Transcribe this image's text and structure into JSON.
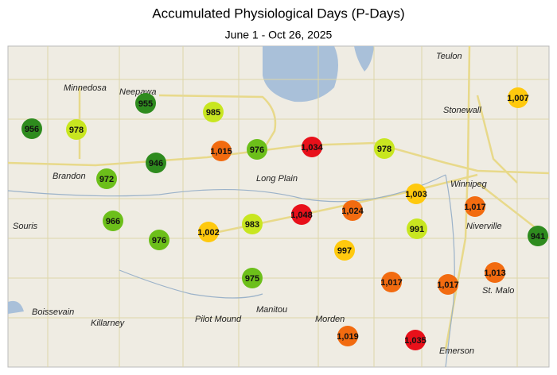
{
  "title": "Accumulated Physiological Days (P-Days)",
  "subtitle": "June 1 - Oct 26, 2025",
  "places": [
    "Teulon",
    "Minnedosa",
    "Neepawa",
    "Stonewall",
    "Winnipeg",
    "Brandon",
    "Long Plain",
    "Souris",
    "Niverville",
    "St. Malo",
    "Boissevain",
    "Killarney",
    "Pilot Mound",
    "Manitou",
    "Morden",
    "Emerson"
  ],
  "stations": [
    {
      "value": 956,
      "color": "#2e8b1e"
    },
    {
      "value": 978,
      "color": "#c8e620"
    },
    {
      "value": 955,
      "color": "#2e8b1e"
    },
    {
      "value": 985,
      "color": "#c8e620"
    },
    {
      "value": 1007,
      "label": "1,007",
      "color": "#ffc90e"
    },
    {
      "value": 972,
      "color": "#6cbf1a"
    },
    {
      "value": 946,
      "color": "#2e8b1e"
    },
    {
      "value": 1015,
      "label": "1,015",
      "color": "#f26b10"
    },
    {
      "value": 976,
      "color": "#6cbf1a"
    },
    {
      "value": 1034,
      "label": "1,034",
      "color": "#e8101a"
    },
    {
      "value": 978,
      "color": "#c8e620"
    },
    {
      "value": 1003,
      "label": "1,003",
      "color": "#ffc90e"
    },
    {
      "value": 1017,
      "label": "1,017",
      "color": "#f26b10"
    },
    {
      "value": 966,
      "color": "#6cbf1a"
    },
    {
      "value": 976,
      "color": "#6cbf1a"
    },
    {
      "value": 1002,
      "label": "1,002",
      "color": "#ffc90e"
    },
    {
      "value": 983,
      "color": "#c8e620"
    },
    {
      "value": 1048,
      "label": "1,048",
      "color": "#e8101a"
    },
    {
      "value": 1024,
      "label": "1,024",
      "color": "#f26b10"
    },
    {
      "value": 991,
      "color": "#c8e620"
    },
    {
      "value": 941,
      "color": "#2e8b1e"
    },
    {
      "value": 997,
      "color": "#ffc90e"
    },
    {
      "value": 975,
      "color": "#6cbf1a"
    },
    {
      "value": 1017,
      "label": "1,017",
      "color": "#f26b10"
    },
    {
      "value": 1017,
      "label": "1,017",
      "color": "#f26b10"
    },
    {
      "value": 1013,
      "label": "1,013",
      "color": "#f26b10"
    },
    {
      "value": 1019,
      "label": "1,019",
      "color": "#f26b10"
    },
    {
      "value": 1035,
      "label": "1,035",
      "color": "#e8101a"
    }
  ]
}
